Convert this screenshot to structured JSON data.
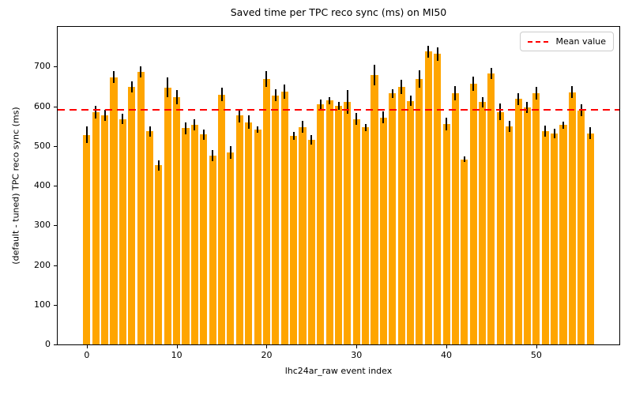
{
  "chart_data": {
    "type": "bar",
    "title": "Saved time per TPC reco sync (ms) on MI50",
    "xlabel": "lhc24ar_raw event index",
    "ylabel": "(default - tuned) TPC reco sync (ms)",
    "legend_label": "Mean value",
    "legend_position": "upper right",
    "grid": false,
    "bar_color": "#FFA500",
    "error_color": "#000000",
    "mean_line_color": "#ff0000",
    "mean_value": 591.8,
    "xlim": [
      -3.24,
      59.24
    ],
    "ylim": [
      0,
      800
    ],
    "xticks": [
      0,
      10,
      20,
      30,
      40,
      50
    ],
    "yticks": [
      0,
      100,
      200,
      300,
      400,
      500,
      600,
      700
    ],
    "x": [
      0,
      1,
      2,
      3,
      4,
      5,
      6,
      7,
      8,
      9,
      10,
      11,
      12,
      13,
      14,
      15,
      16,
      17,
      18,
      19,
      20,
      21,
      22,
      23,
      24,
      25,
      26,
      27,
      28,
      29,
      30,
      31,
      32,
      33,
      34,
      35,
      36,
      37,
      38,
      39,
      40,
      41,
      42,
      43,
      44,
      45,
      46,
      47,
      48,
      49,
      50,
      51,
      52,
      53,
      54,
      55,
      56
    ],
    "values": [
      528,
      585,
      578,
      673,
      568,
      648,
      686,
      537,
      451,
      647,
      623,
      545,
      553,
      529,
      475,
      629,
      484,
      577,
      560,
      542,
      669,
      627,
      636,
      525,
      548,
      515,
      605,
      614,
      601,
      611,
      568,
      547,
      679,
      572,
      632,
      649,
      613,
      669,
      738,
      732,
      555,
      633,
      466,
      656,
      610,
      682,
      586,
      550,
      618,
      597,
      632,
      537,
      532,
      553,
      635,
      590,
      532
    ],
    "errors": [
      21,
      16,
      14,
      15,
      13,
      14,
      14,
      13,
      13,
      25,
      18,
      15,
      14,
      13,
      14,
      17,
      16,
      17,
      17,
      8,
      20,
      15,
      18,
      10,
      15,
      12,
      12,
      9,
      10,
      30,
      15,
      9,
      26,
      15,
      11,
      18,
      13,
      22,
      15,
      17,
      16,
      18,
      7,
      18,
      13,
      14,
      21,
      14,
      15,
      13,
      16,
      14,
      12,
      9,
      15,
      14,
      15
    ]
  }
}
